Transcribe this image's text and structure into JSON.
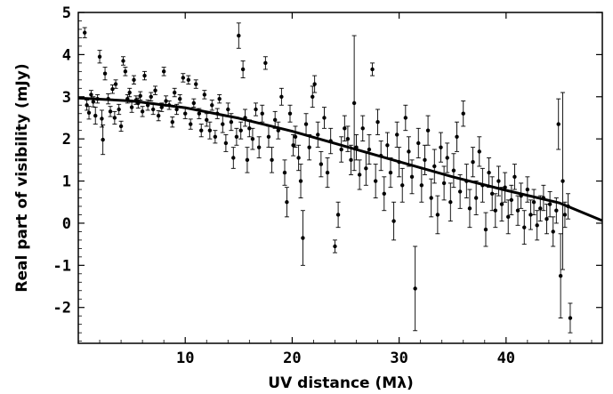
{
  "chart_data": {
    "type": "scatter",
    "title": "",
    "xlabel": "UV distance (Mλ)",
    "ylabel": "Real part of visibility (mJy)",
    "xlim": [
      0,
      49
    ],
    "ylim": [
      -2.85,
      5
    ],
    "xticks": [
      10,
      20,
      30,
      40
    ],
    "yticks": [
      -2,
      -1,
      0,
      1,
      2,
      3,
      4,
      5
    ],
    "grid": false,
    "legend": "none",
    "colors": {
      "points": "#000000",
      "model": "#000000",
      "axes": "#000000"
    },
    "series": [
      {
        "kind": "points-with-errorbars",
        "points": [
          {
            "x": 0.6,
            "y": 4.52,
            "err": 0.12
          },
          {
            "x": 0.8,
            "y": 2.8,
            "err": 0.12
          },
          {
            "x": 1.0,
            "y": 2.62,
            "err": 0.15
          },
          {
            "x": 1.2,
            "y": 3.05,
            "err": 0.1
          },
          {
            "x": 1.4,
            "y": 2.88,
            "err": 0.12
          },
          {
            "x": 1.6,
            "y": 2.55,
            "err": 0.2
          },
          {
            "x": 1.8,
            "y": 2.95,
            "err": 0.1
          },
          {
            "x": 2.0,
            "y": 3.95,
            "err": 0.15
          },
          {
            "x": 2.2,
            "y": 2.48,
            "err": 0.2
          },
          {
            "x": 2.3,
            "y": 1.98,
            "err": 0.35
          },
          {
            "x": 2.5,
            "y": 3.55,
            "err": 0.15
          },
          {
            "x": 2.8,
            "y": 2.95,
            "err": 0.12
          },
          {
            "x": 3.0,
            "y": 2.65,
            "err": 0.12
          },
          {
            "x": 3.2,
            "y": 3.18,
            "err": 0.1
          },
          {
            "x": 3.4,
            "y": 2.5,
            "err": 0.15
          },
          {
            "x": 3.5,
            "y": 3.3,
            "err": 0.1
          },
          {
            "x": 3.8,
            "y": 2.7,
            "err": 0.12
          },
          {
            "x": 4.0,
            "y": 2.3,
            "err": 0.12
          },
          {
            "x": 4.2,
            "y": 3.85,
            "err": 0.1
          },
          {
            "x": 4.4,
            "y": 3.6,
            "err": 0.1
          },
          {
            "x": 4.6,
            "y": 2.95,
            "err": 0.1
          },
          {
            "x": 4.8,
            "y": 3.1,
            "err": 0.1
          },
          {
            "x": 5.0,
            "y": 2.75,
            "err": 0.12
          },
          {
            "x": 5.2,
            "y": 3.4,
            "err": 0.1
          },
          {
            "x": 5.4,
            "y": 2.92,
            "err": 0.1
          },
          {
            "x": 5.6,
            "y": 2.85,
            "err": 0.12
          },
          {
            "x": 5.8,
            "y": 3.02,
            "err": 0.1
          },
          {
            "x": 6.0,
            "y": 2.65,
            "err": 0.12
          },
          {
            "x": 6.2,
            "y": 3.5,
            "err": 0.1
          },
          {
            "x": 6.5,
            "y": 2.8,
            "err": 0.12
          },
          {
            "x": 6.8,
            "y": 3.0,
            "err": 0.1
          },
          {
            "x": 7.0,
            "y": 2.7,
            "err": 0.12
          },
          {
            "x": 7.2,
            "y": 3.15,
            "err": 0.1
          },
          {
            "x": 7.5,
            "y": 2.55,
            "err": 0.12
          },
          {
            "x": 7.8,
            "y": 2.75,
            "err": 0.1
          },
          {
            "x": 8.0,
            "y": 3.6,
            "err": 0.1
          },
          {
            "x": 8.2,
            "y": 2.9,
            "err": 0.12
          },
          {
            "x": 8.5,
            "y": 2.8,
            "err": 0.1
          },
          {
            "x": 8.8,
            "y": 2.4,
            "err": 0.12
          },
          {
            "x": 9.0,
            "y": 3.1,
            "err": 0.1
          },
          {
            "x": 9.2,
            "y": 2.7,
            "err": 0.12
          },
          {
            "x": 9.5,
            "y": 2.95,
            "err": 0.1
          },
          {
            "x": 9.8,
            "y": 3.45,
            "err": 0.1
          },
          {
            "x": 10.0,
            "y": 2.6,
            "err": 0.12
          },
          {
            "x": 10.3,
            "y": 3.4,
            "err": 0.1
          },
          {
            "x": 10.5,
            "y": 2.35,
            "err": 0.12
          },
          {
            "x": 10.8,
            "y": 2.85,
            "err": 0.1
          },
          {
            "x": 11.0,
            "y": 3.3,
            "err": 0.1
          },
          {
            "x": 11.3,
            "y": 2.6,
            "err": 0.12
          },
          {
            "x": 11.5,
            "y": 2.2,
            "err": 0.15
          },
          {
            "x": 11.8,
            "y": 3.05,
            "err": 0.1
          },
          {
            "x": 12.0,
            "y": 2.45,
            "err": 0.15
          },
          {
            "x": 12.3,
            "y": 2.2,
            "err": 0.2
          },
          {
            "x": 12.5,
            "y": 2.8,
            "err": 0.12
          },
          {
            "x": 12.8,
            "y": 2.05,
            "err": 0.15
          },
          {
            "x": 13.0,
            "y": 2.6,
            "err": 0.12
          },
          {
            "x": 13.2,
            "y": 2.95,
            "err": 0.1
          },
          {
            "x": 13.5,
            "y": 2.35,
            "err": 0.2
          },
          {
            "x": 13.8,
            "y": 1.9,
            "err": 0.2
          },
          {
            "x": 14.0,
            "y": 2.7,
            "err": 0.15
          },
          {
            "x": 14.3,
            "y": 2.4,
            "err": 0.2
          },
          {
            "x": 14.5,
            "y": 1.55,
            "err": 0.25
          },
          {
            "x": 14.8,
            "y": 2.05,
            "err": 0.2
          },
          {
            "x": 15.0,
            "y": 4.45,
            "err": 0.3
          },
          {
            "x": 15.2,
            "y": 2.2,
            "err": 0.2
          },
          {
            "x": 15.4,
            "y": 3.65,
            "err": 0.2
          },
          {
            "x": 15.6,
            "y": 2.5,
            "err": 0.2
          },
          {
            "x": 15.8,
            "y": 1.5,
            "err": 0.3
          },
          {
            "x": 16.0,
            "y": 2.25,
            "err": 0.2
          },
          {
            "x": 16.3,
            "y": 2.0,
            "err": 0.25
          },
          {
            "x": 16.6,
            "y": 2.7,
            "err": 0.15
          },
          {
            "x": 16.9,
            "y": 1.8,
            "err": 0.25
          },
          {
            "x": 17.2,
            "y": 2.6,
            "err": 0.2
          },
          {
            "x": 17.5,
            "y": 3.8,
            "err": 0.15
          },
          {
            "x": 17.8,
            "y": 2.05,
            "err": 0.25
          },
          {
            "x": 18.1,
            "y": 1.5,
            "err": 0.3
          },
          {
            "x": 18.4,
            "y": 2.45,
            "err": 0.2
          },
          {
            "x": 18.7,
            "y": 2.2,
            "err": 0.2
          },
          {
            "x": 19.0,
            "y": 3.0,
            "err": 0.2
          },
          {
            "x": 19.3,
            "y": 1.2,
            "err": 0.3
          },
          {
            "x": 19.5,
            "y": 0.5,
            "err": 0.35
          },
          {
            "x": 19.8,
            "y": 2.6,
            "err": 0.2
          },
          {
            "x": 20.1,
            "y": 1.85,
            "err": 0.25
          },
          {
            "x": 20.3,
            "y": 2.05,
            "err": 0.25
          },
          {
            "x": 20.6,
            "y": 1.55,
            "err": 0.3
          },
          {
            "x": 20.8,
            "y": 1.0,
            "err": 0.4
          },
          {
            "x": 21.0,
            "y": -0.35,
            "err": 0.65
          },
          {
            "x": 21.3,
            "y": 2.35,
            "err": 0.25
          },
          {
            "x": 21.6,
            "y": 1.8,
            "err": 0.3
          },
          {
            "x": 21.9,
            "y": 3.0,
            "err": 0.25
          },
          {
            "x": 22.1,
            "y": 3.3,
            "err": 0.2
          },
          {
            "x": 22.4,
            "y": 2.1,
            "err": 0.3
          },
          {
            "x": 22.7,
            "y": 1.4,
            "err": 0.3
          },
          {
            "x": 23.0,
            "y": 2.5,
            "err": 0.25
          },
          {
            "x": 23.3,
            "y": 1.2,
            "err": 0.35
          },
          {
            "x": 23.6,
            "y": 1.95,
            "err": 0.3
          },
          {
            "x": 24.0,
            "y": -0.55,
            "err": 0.15
          },
          {
            "x": 24.3,
            "y": 0.2,
            "err": 0.3
          },
          {
            "x": 24.6,
            "y": 1.75,
            "err": 0.3
          },
          {
            "x": 24.9,
            "y": 2.25,
            "err": 0.3
          },
          {
            "x": 25.2,
            "y": 2.0,
            "err": 0.3
          },
          {
            "x": 25.5,
            "y": 1.5,
            "err": 0.35
          },
          {
            "x": 25.8,
            "y": 2.85,
            "err": 1.6
          },
          {
            "x": 26.0,
            "y": 1.8,
            "err": 0.3
          },
          {
            "x": 26.3,
            "y": 1.15,
            "err": 0.35
          },
          {
            "x": 26.6,
            "y": 2.25,
            "err": 0.3
          },
          {
            "x": 26.9,
            "y": 1.3,
            "err": 0.4
          },
          {
            "x": 27.2,
            "y": 1.75,
            "err": 0.35
          },
          {
            "x": 27.5,
            "y": 3.65,
            "err": 0.15
          },
          {
            "x": 27.8,
            "y": 1.0,
            "err": 0.4
          },
          {
            "x": 28.0,
            "y": 2.4,
            "err": 0.3
          },
          {
            "x": 28.3,
            "y": 1.6,
            "err": 0.35
          },
          {
            "x": 28.6,
            "y": 0.7,
            "err": 0.4
          },
          {
            "x": 28.9,
            "y": 1.85,
            "err": 0.3
          },
          {
            "x": 29.2,
            "y": 1.2,
            "err": 0.35
          },
          {
            "x": 29.5,
            "y": 0.05,
            "err": 0.45
          },
          {
            "x": 29.8,
            "y": 2.1,
            "err": 0.3
          },
          {
            "x": 30.0,
            "y": 1.45,
            "err": 0.35
          },
          {
            "x": 30.3,
            "y": 0.9,
            "err": 0.4
          },
          {
            "x": 30.6,
            "y": 2.5,
            "err": 0.3
          },
          {
            "x": 30.9,
            "y": 1.7,
            "err": 0.35
          },
          {
            "x": 31.2,
            "y": 1.1,
            "err": 0.4
          },
          {
            "x": 31.5,
            "y": -1.55,
            "err": 1.0
          },
          {
            "x": 31.8,
            "y": 1.9,
            "err": 0.35
          },
          {
            "x": 32.1,
            "y": 0.9,
            "err": 0.4
          },
          {
            "x": 32.4,
            "y": 1.5,
            "err": 0.35
          },
          {
            "x": 32.7,
            "y": 2.2,
            "err": 0.35
          },
          {
            "x": 33.0,
            "y": 0.6,
            "err": 0.45
          },
          {
            "x": 33.3,
            "y": 1.35,
            "err": 0.4
          },
          {
            "x": 33.6,
            "y": 0.2,
            "err": 0.45
          },
          {
            "x": 33.9,
            "y": 1.8,
            "err": 0.35
          },
          {
            "x": 34.2,
            "y": 0.95,
            "err": 0.4
          },
          {
            "x": 34.5,
            "y": 1.55,
            "err": 0.35
          },
          {
            "x": 34.8,
            "y": 0.5,
            "err": 0.45
          },
          {
            "x": 35.1,
            "y": 1.25,
            "err": 0.4
          },
          {
            "x": 35.4,
            "y": 2.05,
            "err": 0.35
          },
          {
            "x": 35.7,
            "y": 0.75,
            "err": 0.4
          },
          {
            "x": 36.0,
            "y": 2.6,
            "err": 0.3
          },
          {
            "x": 36.3,
            "y": 1.0,
            "err": 0.4
          },
          {
            "x": 36.6,
            "y": 0.35,
            "err": 0.45
          },
          {
            "x": 36.9,
            "y": 1.45,
            "err": 0.35
          },
          {
            "x": 37.2,
            "y": 0.6,
            "err": 0.4
          },
          {
            "x": 37.5,
            "y": 1.7,
            "err": 0.35
          },
          {
            "x": 37.8,
            "y": 0.9,
            "err": 0.4
          },
          {
            "x": 38.1,
            "y": -0.15,
            "err": 0.4
          },
          {
            "x": 38.4,
            "y": 1.2,
            "err": 0.35
          },
          {
            "x": 38.7,
            "y": 0.7,
            "err": 0.4
          },
          {
            "x": 39.0,
            "y": 0.3,
            "err": 0.4
          },
          {
            "x": 39.3,
            "y": 1.0,
            "err": 0.35
          },
          {
            "x": 39.6,
            "y": 0.45,
            "err": 0.4
          },
          {
            "x": 39.9,
            "y": 0.85,
            "err": 0.35
          },
          {
            "x": 40.2,
            "y": 0.15,
            "err": 0.4
          },
          {
            "x": 40.5,
            "y": 0.55,
            "err": 0.35
          },
          {
            "x": 40.8,
            "y": 1.1,
            "err": 0.3
          },
          {
            "x": 41.1,
            "y": 0.3,
            "err": 0.35
          },
          {
            "x": 41.4,
            "y": 0.65,
            "err": 0.3
          },
          {
            "x": 41.7,
            "y": -0.1,
            "err": 0.4
          },
          {
            "x": 42.0,
            "y": 0.8,
            "err": 0.3
          },
          {
            "x": 42.3,
            "y": 0.2,
            "err": 0.35
          },
          {
            "x": 42.6,
            "y": 0.5,
            "err": 0.3
          },
          {
            "x": 42.9,
            "y": -0.05,
            "err": 0.35
          },
          {
            "x": 43.2,
            "y": 0.35,
            "err": 0.3
          },
          {
            "x": 43.5,
            "y": 0.6,
            "err": 0.3
          },
          {
            "x": 43.8,
            "y": 0.1,
            "err": 0.35
          },
          {
            "x": 44.1,
            "y": 0.45,
            "err": 0.3
          },
          {
            "x": 44.4,
            "y": -0.2,
            "err": 0.35
          },
          {
            "x": 44.7,
            "y": 0.3,
            "err": 0.3
          },
          {
            "x": 44.9,
            "y": 2.35,
            "err": 0.6
          },
          {
            "x": 45.1,
            "y": -1.25,
            "err": 1.0
          },
          {
            "x": 45.3,
            "y": 1.0,
            "err": 2.1
          },
          {
            "x": 45.5,
            "y": 0.2,
            "err": 0.3
          },
          {
            "x": 45.8,
            "y": 0.4,
            "err": 0.3
          },
          {
            "x": 46.0,
            "y": -2.25,
            "err": 0.35
          }
        ]
      },
      {
        "kind": "model-curve",
        "x": [
          0,
          5,
          10,
          15,
          20,
          25,
          30,
          35,
          40,
          45,
          49
        ],
        "y": [
          2.97,
          2.9,
          2.74,
          2.49,
          2.18,
          1.82,
          1.46,
          1.1,
          0.78,
          0.48,
          0.06
        ]
      }
    ]
  }
}
